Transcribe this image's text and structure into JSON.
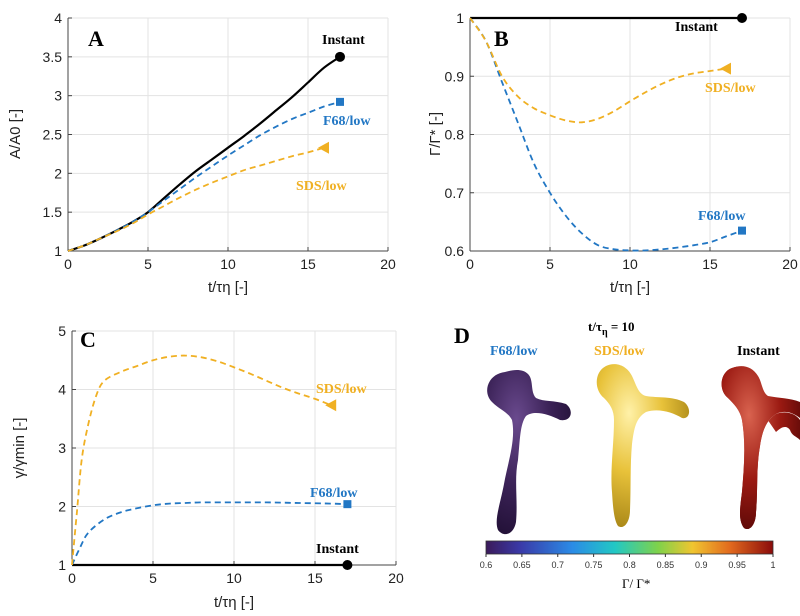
{
  "colors": {
    "instant": "#000000",
    "f68": "#2277c4",
    "sds": "#f0b023",
    "grid": "#e3e3e3",
    "axis": "#444444"
  },
  "chart_data": [
    {
      "panel": "A",
      "type": "line",
      "xlabel": "t/τη [-]",
      "ylabel": "A/A0 [-]",
      "xlim": [
        0,
        20
      ],
      "ylim": [
        1,
        4
      ],
      "xticks": [
        0,
        5,
        10,
        15,
        20
      ],
      "yticks": [
        1,
        1.5,
        2,
        2.5,
        3,
        3.5,
        4
      ],
      "ytick_labels": [
        "1",
        "1.5",
        "2",
        "2.5",
        "3",
        "3.5",
        "4"
      ],
      "grid": true,
      "series": [
        {
          "name": "Instant",
          "style": "solid",
          "color": "instant",
          "marker": "circle",
          "x": [
            0,
            1,
            2,
            3,
            4,
            5,
            6,
            7,
            8,
            9,
            10,
            11,
            12,
            13,
            14,
            15,
            16,
            17
          ],
          "y": [
            1.0,
            1.07,
            1.16,
            1.26,
            1.37,
            1.5,
            1.68,
            1.86,
            2.03,
            2.18,
            2.33,
            2.48,
            2.64,
            2.81,
            2.98,
            3.17,
            3.36,
            3.5
          ]
        },
        {
          "name": "F68/low",
          "style": "dashed",
          "color": "f68",
          "marker": "square",
          "x": [
            0,
            1,
            2,
            3,
            4,
            5,
            6,
            7,
            8,
            9,
            10,
            11,
            12,
            13,
            14,
            15,
            16,
            17
          ],
          "y": [
            1.0,
            1.07,
            1.16,
            1.26,
            1.37,
            1.5,
            1.65,
            1.8,
            1.95,
            2.09,
            2.23,
            2.36,
            2.49,
            2.6,
            2.7,
            2.78,
            2.86,
            2.92
          ]
        },
        {
          "name": "SDS/low",
          "style": "dashed",
          "color": "sds",
          "marker": "triangle-left",
          "x": [
            0,
            1,
            2,
            3,
            4,
            5,
            6,
            7,
            8,
            9,
            10,
            11,
            12,
            13,
            14,
            15,
            16
          ],
          "y": [
            1.0,
            1.07,
            1.16,
            1.25,
            1.35,
            1.47,
            1.58,
            1.69,
            1.79,
            1.88,
            1.96,
            2.04,
            2.1,
            2.16,
            2.22,
            2.27,
            2.33
          ]
        }
      ]
    },
    {
      "panel": "B",
      "type": "line",
      "xlabel": "t/τη [-]",
      "ylabel": "Γ/Γ* [-]",
      "xlim": [
        0,
        20
      ],
      "ylim": [
        0.6,
        1.0
      ],
      "xticks": [
        0,
        5,
        10,
        15,
        20
      ],
      "yticks": [
        0.6,
        0.7,
        0.8,
        0.9,
        1.0
      ],
      "ytick_labels": [
        "0.6",
        "0.7",
        "0.8",
        "0.9",
        "1"
      ],
      "grid": true,
      "series": [
        {
          "name": "Instant",
          "style": "solid",
          "color": "instant",
          "marker": "circle",
          "x": [
            0,
            17
          ],
          "y": [
            1.0,
            1.0
          ]
        },
        {
          "name": "F68/low",
          "style": "dashed",
          "color": "f68",
          "marker": "square",
          "x": [
            0,
            1,
            2,
            3,
            4,
            5,
            6,
            7,
            8,
            9,
            10,
            11,
            12,
            13,
            14,
            15,
            16,
            17
          ],
          "y": [
            1.0,
            0.96,
            0.89,
            0.82,
            0.75,
            0.7,
            0.66,
            0.63,
            0.61,
            0.603,
            0.601,
            0.601,
            0.603,
            0.606,
            0.61,
            0.615,
            0.625,
            0.635
          ]
        },
        {
          "name": "SDS/low",
          "style": "dashed",
          "color": "sds",
          "marker": "triangle-left",
          "x": [
            0,
            1,
            2,
            3,
            4,
            5,
            6,
            7,
            8,
            9,
            10,
            11,
            12,
            13,
            14,
            15,
            16
          ],
          "y": [
            1.0,
            0.96,
            0.9,
            0.865,
            0.845,
            0.833,
            0.824,
            0.821,
            0.827,
            0.84,
            0.857,
            0.873,
            0.887,
            0.898,
            0.905,
            0.909,
            0.913
          ]
        }
      ]
    },
    {
      "panel": "C",
      "type": "line",
      "xlabel": "t/τη [-]",
      "ylabel": "γ/γmin [-]",
      "xlim": [
        0,
        20
      ],
      "ylim": [
        1,
        5
      ],
      "xticks": [
        0,
        5,
        10,
        15,
        20
      ],
      "yticks": [
        1,
        2,
        3,
        4,
        5
      ],
      "ytick_labels": [
        "1",
        "2",
        "3",
        "4",
        "5"
      ],
      "grid": true,
      "series": [
        {
          "name": "Instant",
          "style": "solid",
          "color": "instant",
          "marker": "circle",
          "x": [
            0,
            17
          ],
          "y": [
            1.0,
            1.0
          ]
        },
        {
          "name": "F68/low",
          "style": "dashed",
          "color": "f68",
          "marker": "square",
          "x": [
            0,
            0.5,
            1,
            2,
            3,
            4,
            5,
            6,
            7,
            8,
            10,
            12,
            14,
            16,
            17
          ],
          "y": [
            1.0,
            1.3,
            1.55,
            1.78,
            1.9,
            1.97,
            2.02,
            2.05,
            2.06,
            2.07,
            2.07,
            2.07,
            2.06,
            2.05,
            2.04
          ]
        },
        {
          "name": "SDS/low",
          "style": "dashed",
          "color": "sds",
          "marker": "triangle-left",
          "x": [
            0,
            0.3,
            0.6,
            1,
            1.5,
            2,
            3,
            4,
            5,
            6,
            7,
            8,
            9,
            10,
            11,
            12,
            13,
            14,
            15,
            16
          ],
          "y": [
            1.0,
            1.9,
            2.8,
            3.4,
            3.9,
            4.15,
            4.3,
            4.4,
            4.5,
            4.56,
            4.58,
            4.55,
            4.48,
            4.38,
            4.27,
            4.15,
            4.03,
            3.93,
            3.84,
            3.73
          ]
        }
      ]
    }
  ],
  "labels": {
    "panel_a": "A",
    "panel_b": "B",
    "panel_c": "C",
    "panel_d": "D",
    "instant": "Instant",
    "f68": "F68/low",
    "sds": "SDS/low"
  },
  "panel_d": {
    "time_label_prefix": "t/τ",
    "time_label_sub": "η",
    "time_label_suffix": " = 10",
    "colorbar_ticks": [
      "0.6",
      "0.65",
      "0.7",
      "0.75",
      "0.8",
      "0.85",
      "0.9",
      "0.95",
      "1"
    ],
    "colorbar_label": "Γ/ Γ*",
    "colorbar_range": [
      0.6,
      1.0
    ]
  }
}
